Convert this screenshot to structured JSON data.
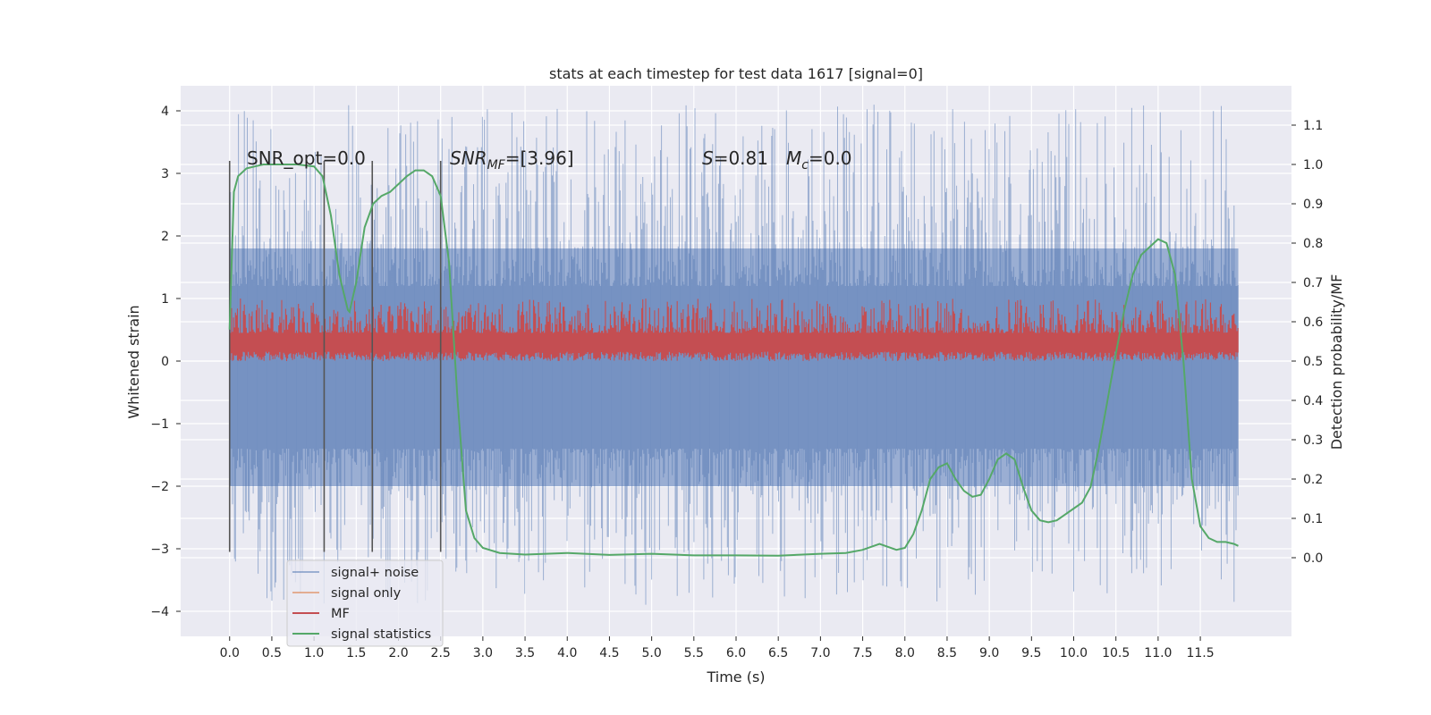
{
  "chart_data": {
    "type": "line",
    "title": "stats at each timestep for test data 1617 [signal=0]",
    "xlabel": "Time (s)",
    "ylabel": "Whitened strain",
    "ylabel_right": "Detection probability/MF",
    "xlim": [
      -0.58,
      12.58
    ],
    "ylim": [
      -4.4,
      4.4
    ],
    "ylim_right": [
      -0.2,
      1.2
    ],
    "xticks": [
      "0.0",
      "0.5",
      "1.0",
      "1.5",
      "2.0",
      "2.5",
      "3.0",
      "3.5",
      "4.0",
      "4.5",
      "5.0",
      "5.5",
      "6.0",
      "6.5",
      "7.0",
      "7.5",
      "8.0",
      "8.5",
      "9.0",
      "9.5",
      "10.0",
      "10.5",
      "11.0",
      "11.5"
    ],
    "yticks": [
      "4",
      "3",
      "2",
      "1",
      "0",
      "−1",
      "−2",
      "−3",
      "−4"
    ],
    "yticks_right": [
      "1.1",
      "1.0",
      "0.9",
      "0.8",
      "0.7",
      "0.6",
      "0.5",
      "0.4",
      "0.3",
      "0.2",
      "0.1",
      "0.0"
    ],
    "annotations": {
      "snr_opt": "SNR_opt=0.0",
      "snr_mf_sym": "SNR",
      "snr_mf_sub": "MF",
      "snr_mf_val": "=[3.96]",
      "s_sym": "S",
      "s_val": "=0.81",
      "mc_sym": "M",
      "mc_sub": "c",
      "mc_val": "=0.0"
    },
    "vlines_x": [
      0.0,
      1.12,
      1.69,
      2.5
    ],
    "vlines_ymin": -3.05,
    "vlines_ymax": 3.2,
    "noise_band": {
      "x_start": 0.0,
      "x_end": 11.95,
      "center": -0.1,
      "amplitude": 2.0,
      "spike_max": 4.1,
      "spike_min": -3.9
    },
    "mf_band": {
      "x_start": 0.0,
      "x_end": 11.95,
      "min": 0.0,
      "max": 0.65,
      "peak": 1.0
    },
    "series": [
      {
        "name": "signal+ noise",
        "color": "#4c72b0"
      },
      {
        "name": "signal only",
        "color": "#dd8452"
      },
      {
        "name": "MF",
        "color": "#c44e52"
      },
      {
        "name": "signal statistics",
        "color": "#55a868",
        "axis": "right",
        "x": [
          0.0,
          0.05,
          0.1,
          0.2,
          0.3,
          0.4,
          0.6,
          0.8,
          1.0,
          1.1,
          1.2,
          1.3,
          1.4,
          1.42,
          1.5,
          1.6,
          1.7,
          1.8,
          1.9,
          2.0,
          2.1,
          2.2,
          2.3,
          2.4,
          2.5,
          2.6,
          2.7,
          2.8,
          2.9,
          3.0,
          3.2,
          3.5,
          4.0,
          4.5,
          5.0,
          5.5,
          6.0,
          6.5,
          7.0,
          7.3,
          7.5,
          7.7,
          7.9,
          8.0,
          8.1,
          8.2,
          8.3,
          8.4,
          8.5,
          8.6,
          8.7,
          8.8,
          8.9,
          9.0,
          9.1,
          9.2,
          9.3,
          9.4,
          9.5,
          9.6,
          9.7,
          9.8,
          9.9,
          10.0,
          10.1,
          10.2,
          10.3,
          10.4,
          10.5,
          10.6,
          10.7,
          10.8,
          10.9,
          11.0,
          11.1,
          11.2,
          11.3,
          11.4,
          11.5,
          11.6,
          11.7,
          11.8,
          11.9,
          11.95
        ],
        "y": [
          0.58,
          0.93,
          0.97,
          0.99,
          0.995,
          1.0,
          1.0,
          1.0,
          0.995,
          0.97,
          0.87,
          0.72,
          0.63,
          0.625,
          0.7,
          0.84,
          0.9,
          0.92,
          0.93,
          0.95,
          0.97,
          0.985,
          0.985,
          0.97,
          0.92,
          0.75,
          0.4,
          0.12,
          0.05,
          0.025,
          0.012,
          0.008,
          0.012,
          0.007,
          0.01,
          0.006,
          0.006,
          0.005,
          0.01,
          0.012,
          0.02,
          0.035,
          0.02,
          0.025,
          0.06,
          0.12,
          0.2,
          0.23,
          0.24,
          0.2,
          0.17,
          0.155,
          0.16,
          0.2,
          0.25,
          0.265,
          0.25,
          0.18,
          0.12,
          0.095,
          0.09,
          0.095,
          0.11,
          0.125,
          0.14,
          0.18,
          0.28,
          0.4,
          0.52,
          0.63,
          0.72,
          0.77,
          0.79,
          0.81,
          0.8,
          0.72,
          0.5,
          0.2,
          0.08,
          0.05,
          0.04,
          0.04,
          0.035,
          0.03
        ]
      }
    ],
    "legend_position": "lower-left"
  }
}
